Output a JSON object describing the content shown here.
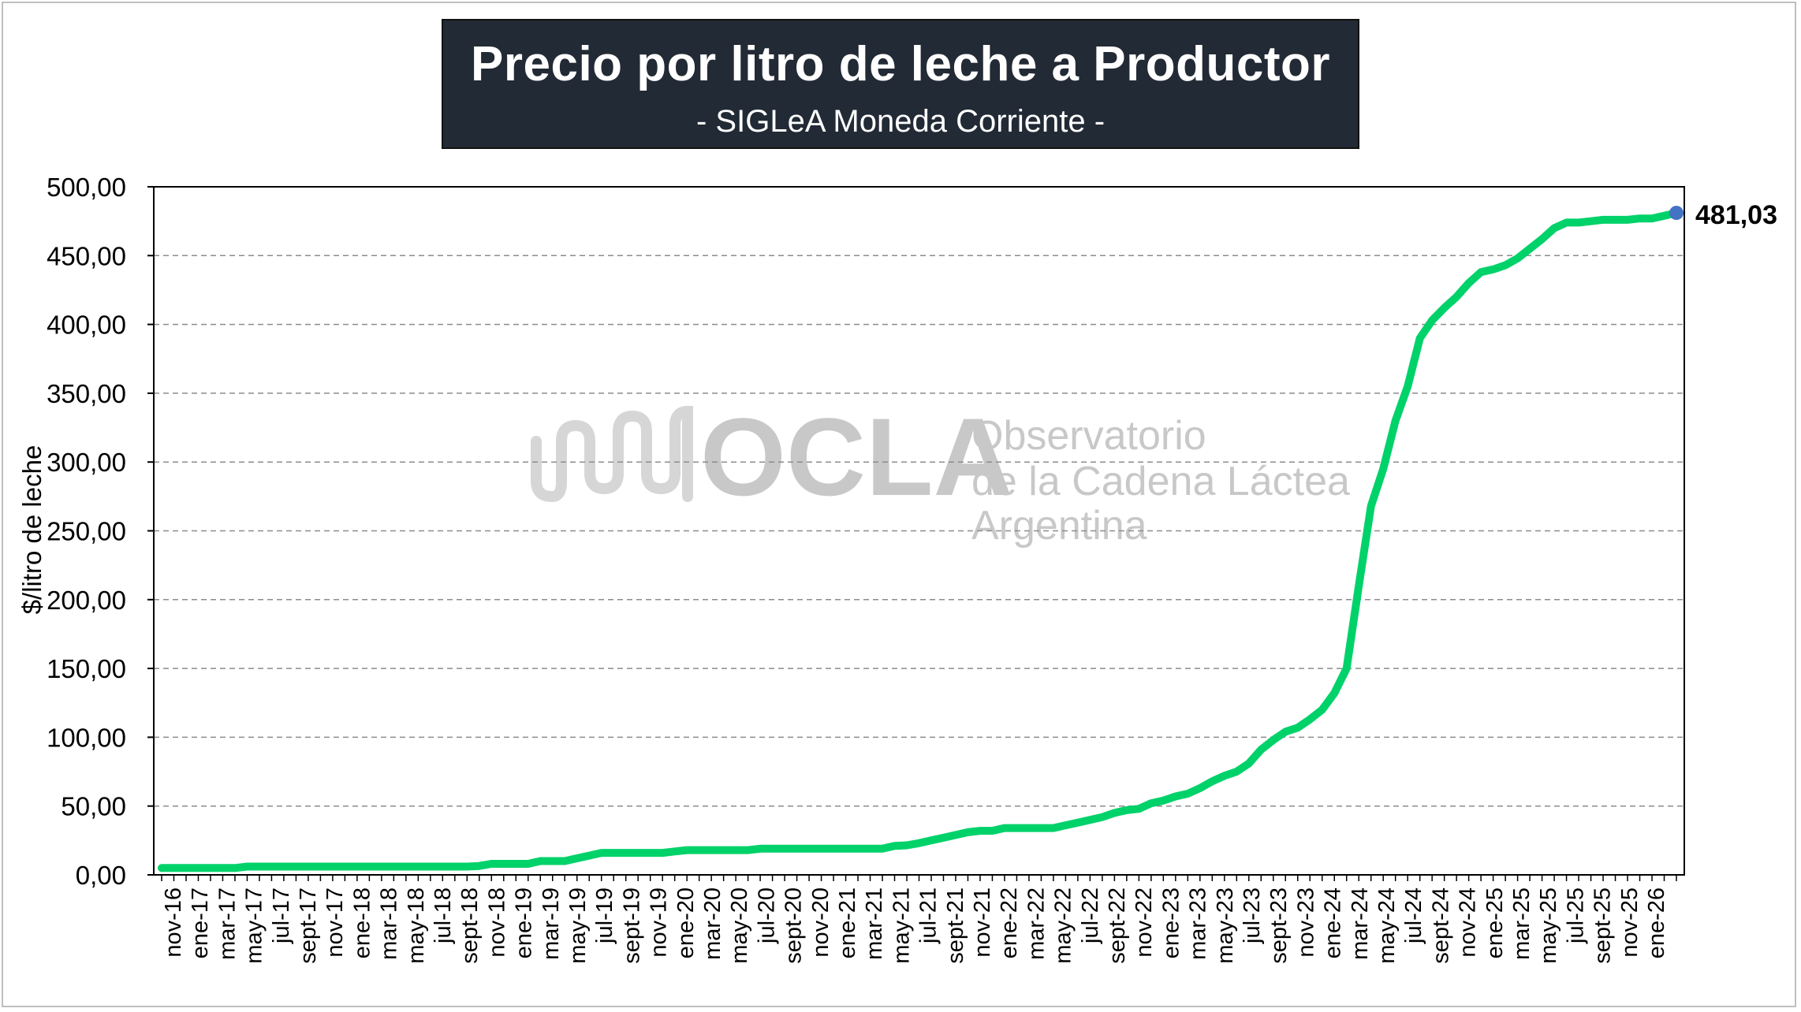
{
  "chart_data": {
    "type": "line",
    "title": "Precio por litro de leche a Productor",
    "subtitle": "- SIGLeA Moneda  Corriente -",
    "ylabel": "$/litro de leche",
    "xlabel": "",
    "ylim": [
      0,
      500
    ],
    "yticks": [
      "0,00",
      "50,00",
      "100,00",
      "150,00",
      "200,00",
      "250,00",
      "300,00",
      "350,00",
      "400,00",
      "450,00",
      "500,00"
    ],
    "grid": true,
    "line_color": "#00d26a",
    "end_marker_color": "#4472c4",
    "end_label": "481,03",
    "x_tick_labels": [
      "nov-16",
      "ene-17",
      "mar-17",
      "may-17",
      "jul-17",
      "sept-17",
      "nov-17",
      "ene-18",
      "mar-18",
      "may-18",
      "jul-18",
      "sept-18",
      "nov-18",
      "ene-19",
      "mar-19",
      "may-19",
      "jul-19",
      "sept-19",
      "nov-19",
      "ene-20",
      "mar-20",
      "may-20",
      "jul-20",
      "sept-20",
      "nov-20",
      "ene-21",
      "mar-21",
      "may-21",
      "jul-21",
      "sept-21",
      "nov-21",
      "ene-22",
      "mar-22",
      "may-22",
      "jul-22",
      "sept-22",
      "nov-22",
      "ene-23",
      "mar-23",
      "may-23",
      "jul-23",
      "sept-23",
      "nov-23",
      "ene-24",
      "mar-24",
      "may-24",
      "jul-24",
      "sept-24",
      "nov-24",
      "ene-25",
      "mar-25",
      "may-25",
      "jul-25",
      "sept-25",
      "nov-25",
      "ene-26"
    ],
    "series": [
      {
        "values": [
          5.0,
          5.0,
          5.0,
          5.0,
          5.0,
          5.0,
          5.0,
          6.0,
          6.0,
          6.0,
          6.0,
          6.0,
          6.0,
          6.0,
          6.0,
          6.0,
          6.0,
          6.0,
          6.0,
          6.0,
          6.0,
          6.0,
          6.0,
          6.0,
          6.0,
          6.0,
          6.5,
          8.0,
          8.0,
          8.0,
          8.0,
          10.0,
          10.0,
          10.0,
          12.0,
          14.0,
          16.0,
          16.0,
          16.0,
          16.0,
          16.0,
          16.0,
          17.0,
          18.0,
          18.0,
          18.0,
          18.0,
          18.0,
          18.0,
          19.0,
          19.0,
          19.0,
          19.0,
          19.0,
          19.0,
          19.0,
          19.0,
          19.0,
          19.0,
          19.0,
          21.0,
          21.5,
          23.0,
          25.0,
          27.0,
          29.0,
          31.0,
          32.0,
          32.0,
          34.0,
          34.0,
          34.0,
          34.0,
          34.0,
          36.0,
          38.0,
          40.0,
          42.0,
          45.0,
          47.0,
          48.0,
          52.0,
          54.0,
          57.0,
          59.0,
          63.0,
          68.0,
          72.0,
          75.0,
          81.0,
          91.0,
          98.0,
          104.0,
          107.0,
          113.0,
          120.0,
          132.0,
          150.0,
          210.0,
          268.0,
          295.0,
          330.0,
          355.0,
          390.0,
          403.0,
          412.0,
          420.0,
          430.0,
          438.0,
          440.0,
          443.0,
          448.0,
          455.0,
          462.0,
          470.0,
          474.0,
          474.0,
          475.0,
          476.0,
          476.0,
          476.0,
          477.0,
          477.0,
          479.0,
          481.03
        ]
      }
    ]
  },
  "watermark": {
    "brand": "OCLA",
    "line1": "Observatorio",
    "line2": "de la Cadena Láctea",
    "line3": "Argentina"
  }
}
